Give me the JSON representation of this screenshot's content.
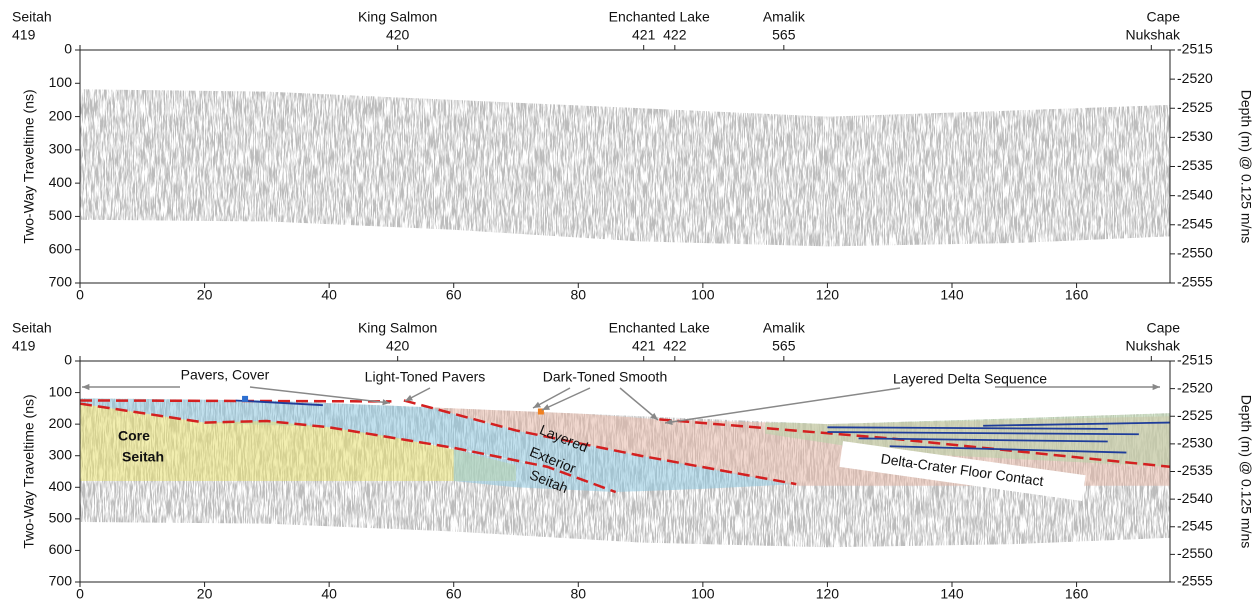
{
  "chart_data": [
    {
      "type": "radargram",
      "ylabel": "Two-Way Traveltime (ns)",
      "y2label": "Depth (m) @ 0.125 m/ns",
      "xlim": [
        0,
        175
      ],
      "xticks": [
        0,
        20,
        40,
        60,
        80,
        100,
        120,
        140,
        160
      ],
      "ylim": [
        0,
        700
      ],
      "yticks": [
        0,
        100,
        200,
        300,
        400,
        500,
        600,
        700
      ],
      "y2lim": [
        -2515,
        -2555
      ],
      "y2ticks": [
        -2515,
        -2520,
        -2525,
        -2530,
        -2535,
        -2540,
        -2545,
        -2550,
        -2555
      ],
      "stations": [
        {
          "name": "Seitah",
          "x": 0,
          "labels": [
            {
              "text": "419",
              "x": 0
            }
          ]
        },
        {
          "name": "King Salmon",
          "x": 51,
          "labels": [
            {
              "text": "420",
              "x": 51
            }
          ]
        },
        {
          "name": "Enchanted Lake",
          "x": 93,
          "labels": [
            {
              "text": "421",
              "x": 90.5
            },
            {
              "text": "422",
              "x": 95.5
            }
          ]
        },
        {
          "name": "Amalik",
          "x": 113,
          "labels": [
            {
              "text": "565",
              "x": 113
            }
          ]
        },
        {
          "name": "Cape",
          "x": 172,
          "labels": [
            {
              "text": "Nukshak",
              "x": 172
            }
          ]
        }
      ]
    },
    {
      "type": "radargram",
      "ylabel": "Two-Way Traveltime (ns)",
      "y2label": "Depth (m) @ 0.125 m/ns",
      "xlim": [
        0,
        175
      ],
      "xticks": [
        0,
        20,
        40,
        60,
        80,
        100,
        120,
        140,
        160
      ],
      "ylim": [
        0,
        700
      ],
      "yticks": [
        0,
        100,
        200,
        300,
        400,
        500,
        600,
        700
      ],
      "y2lim": [
        -2515,
        -2555
      ],
      "y2ticks": [
        -2515,
        -2520,
        -2525,
        -2530,
        -2535,
        -2540,
        -2545,
        -2550,
        -2555
      ],
      "stations": [
        {
          "name": "Seitah",
          "x": 0,
          "labels": [
            {
              "text": "419",
              "x": 0
            }
          ]
        },
        {
          "name": "King Salmon",
          "x": 51,
          "labels": [
            {
              "text": "420",
              "x": 51
            }
          ]
        },
        {
          "name": "Enchanted Lake",
          "x": 93,
          "labels": [
            {
              "text": "421",
              "x": 90.5
            },
            {
              "text": "422",
              "x": 95.5
            }
          ]
        },
        {
          "name": "Amalik",
          "x": 113,
          "labels": [
            {
              "text": "565",
              "x": 113
            }
          ]
        },
        {
          "name": "Cape",
          "x": 172,
          "labels": [
            {
              "text": "Nukshak",
              "x": 172
            }
          ]
        }
      ],
      "annotations": [
        "Pavers, Cover",
        "Light-Toned Pavers",
        "Dark-Toned Smooth",
        "Layered Delta Sequence",
        "Core",
        "Seitah",
        "Layered",
        "Exterior",
        "Seitah",
        "Delta-Crater Floor Contact"
      ]
    }
  ]
}
